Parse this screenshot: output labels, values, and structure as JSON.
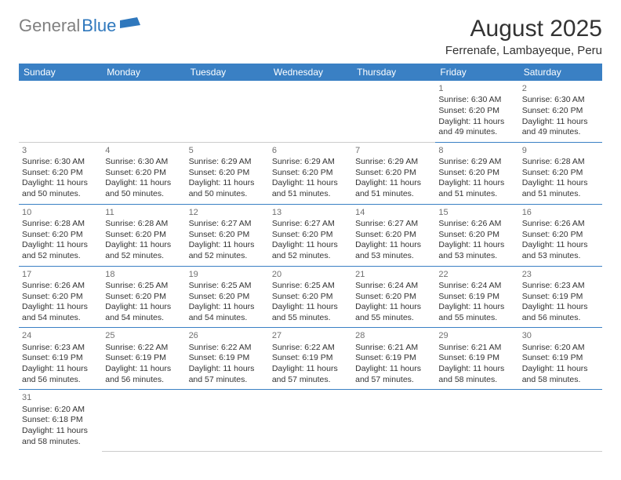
{
  "logo": {
    "grey": "General",
    "blue": "Blue"
  },
  "title": "August 2025",
  "location": "Ferrenafe, Lambayeque, Peru",
  "weekdays": [
    "Sunday",
    "Monday",
    "Tuesday",
    "Wednesday",
    "Thursday",
    "Friday",
    "Saturday"
  ],
  "colors": {
    "header_bg": "#3a80c4",
    "header_text": "#ffffff",
    "daynum": "#707070",
    "border": "#3a80c4",
    "logo_grey": "#808080",
    "logo_blue": "#2f78bd"
  },
  "weeks": [
    [
      null,
      null,
      null,
      null,
      null,
      {
        "n": "1",
        "sr": "6:30 AM",
        "ss": "6:20 PM",
        "dl": "11 hours and 49 minutes."
      },
      {
        "n": "2",
        "sr": "6:30 AM",
        "ss": "6:20 PM",
        "dl": "11 hours and 49 minutes."
      }
    ],
    [
      {
        "n": "3",
        "sr": "6:30 AM",
        "ss": "6:20 PM",
        "dl": "11 hours and 50 minutes."
      },
      {
        "n": "4",
        "sr": "6:30 AM",
        "ss": "6:20 PM",
        "dl": "11 hours and 50 minutes."
      },
      {
        "n": "5",
        "sr": "6:29 AM",
        "ss": "6:20 PM",
        "dl": "11 hours and 50 minutes."
      },
      {
        "n": "6",
        "sr": "6:29 AM",
        "ss": "6:20 PM",
        "dl": "11 hours and 51 minutes."
      },
      {
        "n": "7",
        "sr": "6:29 AM",
        "ss": "6:20 PM",
        "dl": "11 hours and 51 minutes."
      },
      {
        "n": "8",
        "sr": "6:29 AM",
        "ss": "6:20 PM",
        "dl": "11 hours and 51 minutes."
      },
      {
        "n": "9",
        "sr": "6:28 AM",
        "ss": "6:20 PM",
        "dl": "11 hours and 51 minutes."
      }
    ],
    [
      {
        "n": "10",
        "sr": "6:28 AM",
        "ss": "6:20 PM",
        "dl": "11 hours and 52 minutes."
      },
      {
        "n": "11",
        "sr": "6:28 AM",
        "ss": "6:20 PM",
        "dl": "11 hours and 52 minutes."
      },
      {
        "n": "12",
        "sr": "6:27 AM",
        "ss": "6:20 PM",
        "dl": "11 hours and 52 minutes."
      },
      {
        "n": "13",
        "sr": "6:27 AM",
        "ss": "6:20 PM",
        "dl": "11 hours and 52 minutes."
      },
      {
        "n": "14",
        "sr": "6:27 AM",
        "ss": "6:20 PM",
        "dl": "11 hours and 53 minutes."
      },
      {
        "n": "15",
        "sr": "6:26 AM",
        "ss": "6:20 PM",
        "dl": "11 hours and 53 minutes."
      },
      {
        "n": "16",
        "sr": "6:26 AM",
        "ss": "6:20 PM",
        "dl": "11 hours and 53 minutes."
      }
    ],
    [
      {
        "n": "17",
        "sr": "6:26 AM",
        "ss": "6:20 PM",
        "dl": "11 hours and 54 minutes."
      },
      {
        "n": "18",
        "sr": "6:25 AM",
        "ss": "6:20 PM",
        "dl": "11 hours and 54 minutes."
      },
      {
        "n": "19",
        "sr": "6:25 AM",
        "ss": "6:20 PM",
        "dl": "11 hours and 54 minutes."
      },
      {
        "n": "20",
        "sr": "6:25 AM",
        "ss": "6:20 PM",
        "dl": "11 hours and 55 minutes."
      },
      {
        "n": "21",
        "sr": "6:24 AM",
        "ss": "6:20 PM",
        "dl": "11 hours and 55 minutes."
      },
      {
        "n": "22",
        "sr": "6:24 AM",
        "ss": "6:19 PM",
        "dl": "11 hours and 55 minutes."
      },
      {
        "n": "23",
        "sr": "6:23 AM",
        "ss": "6:19 PM",
        "dl": "11 hours and 56 minutes."
      }
    ],
    [
      {
        "n": "24",
        "sr": "6:23 AM",
        "ss": "6:19 PM",
        "dl": "11 hours and 56 minutes."
      },
      {
        "n": "25",
        "sr": "6:22 AM",
        "ss": "6:19 PM",
        "dl": "11 hours and 56 minutes."
      },
      {
        "n": "26",
        "sr": "6:22 AM",
        "ss": "6:19 PM",
        "dl": "11 hours and 57 minutes."
      },
      {
        "n": "27",
        "sr": "6:22 AM",
        "ss": "6:19 PM",
        "dl": "11 hours and 57 minutes."
      },
      {
        "n": "28",
        "sr": "6:21 AM",
        "ss": "6:19 PM",
        "dl": "11 hours and 57 minutes."
      },
      {
        "n": "29",
        "sr": "6:21 AM",
        "ss": "6:19 PM",
        "dl": "11 hours and 58 minutes."
      },
      {
        "n": "30",
        "sr": "6:20 AM",
        "ss": "6:19 PM",
        "dl": "11 hours and 58 minutes."
      }
    ],
    [
      {
        "n": "31",
        "sr": "6:20 AM",
        "ss": "6:18 PM",
        "dl": "11 hours and 58 minutes."
      },
      null,
      null,
      null,
      null,
      null,
      null
    ]
  ],
  "labels": {
    "sunrise": "Sunrise:",
    "sunset": "Sunset:",
    "daylight": "Daylight:"
  }
}
